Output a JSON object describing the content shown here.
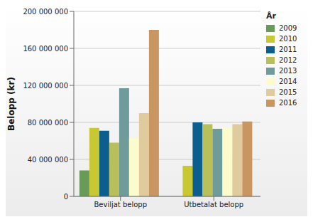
{
  "chart_data": {
    "type": "bar",
    "y_label": "Belopp (kr)",
    "legend_title": "År",
    "legend": "top-right",
    "grid": true,
    "categories": [
      "Beviljat belopp",
      "Utbetalat belopp"
    ],
    "series": [
      {
        "name": "2009",
        "color": "#6a9a5a",
        "values": [
          28000000,
          0
        ]
      },
      {
        "name": "2010",
        "color": "#c8c832",
        "values": [
          74000000,
          33000000
        ]
      },
      {
        "name": "2011",
        "color": "#0b5e8e",
        "values": [
          71000000,
          80000000
        ]
      },
      {
        "name": "2012",
        "color": "#b9bf5b",
        "values": [
          58000000,
          78000000
        ]
      },
      {
        "name": "2013",
        "color": "#6f9b9b",
        "values": [
          117000000,
          73000000
        ]
      },
      {
        "name": "2014",
        "color": "#fbfbce",
        "values": [
          63000000,
          74000000
        ]
      },
      {
        "name": "2015",
        "color": "#e0cb9f",
        "values": [
          90000000,
          78000000
        ]
      },
      {
        "name": "2016",
        "color": "#c99661",
        "values": [
          180000000,
          81000000
        ]
      }
    ],
    "ylim": [
      0,
      200000000
    ],
    "yticks": [
      0,
      {
        "value": 40000000,
        "label": "40 000 000"
      },
      {
        "value": 80000000,
        "label": "80 000 000"
      },
      {
        "value": 120000000,
        "label": "120 000 000"
      },
      {
        "value": 160000000,
        "label": "160 000 000"
      },
      {
        "value": 200000000,
        "label": "200 000 000"
      }
    ]
  }
}
